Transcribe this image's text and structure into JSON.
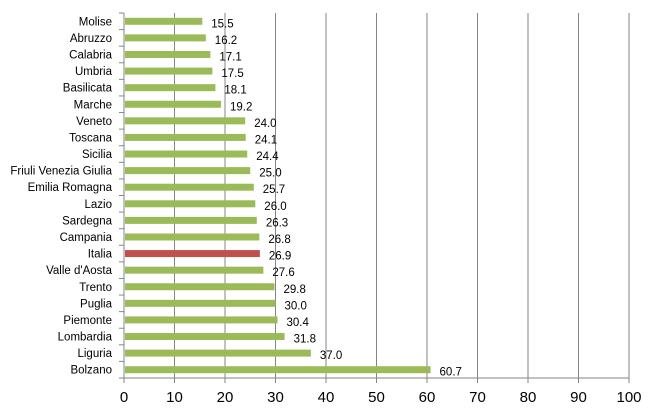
{
  "chart_data": {
    "type": "bar",
    "orientation": "horizontal",
    "title": "",
    "xlabel": "",
    "ylabel": "",
    "xlim": [
      0,
      100
    ],
    "x_ticks": [
      "0",
      "10",
      "20",
      "30",
      "40",
      "50",
      "60",
      "70",
      "80",
      "90",
      "100"
    ],
    "grid": "vertical",
    "categories": [
      "Molise",
      "Abruzzo",
      "Calabria",
      "Umbria",
      "Basilicata",
      "Marche",
      "Veneto",
      "Toscana",
      "Sicilia",
      "Friuli Venezia Giulia",
      "Emilia Romagna",
      "Lazio",
      "Sardegna",
      "Campania",
      "Italia",
      "Valle d'Aosta",
      "Trento",
      "Puglia",
      "Piemonte",
      "Lombardia",
      "Liguria",
      "Bolzano"
    ],
    "values": [
      15.5,
      16.2,
      17.1,
      17.5,
      18.1,
      19.2,
      24.0,
      24.1,
      24.4,
      25.0,
      25.7,
      26.0,
      26.3,
      26.8,
      26.9,
      27.6,
      29.8,
      30.0,
      30.4,
      31.8,
      37.0,
      60.7
    ],
    "value_labels": [
      "15.5",
      "16.2",
      "17.1",
      "17.5",
      "18.1",
      "19.2",
      "24.0",
      "24.1",
      "24.4",
      "25.0",
      "25.7",
      "26.0",
      "26.3",
      "26.8",
      "26.9",
      "27.6",
      "29.8",
      "30.0",
      "30.4",
      "31.8",
      "37.0",
      "60.7"
    ],
    "highlight_category": "Italia",
    "colors": {
      "bar": "#9BBB59",
      "highlight": "#C0504D",
      "grid": "#868686"
    }
  }
}
